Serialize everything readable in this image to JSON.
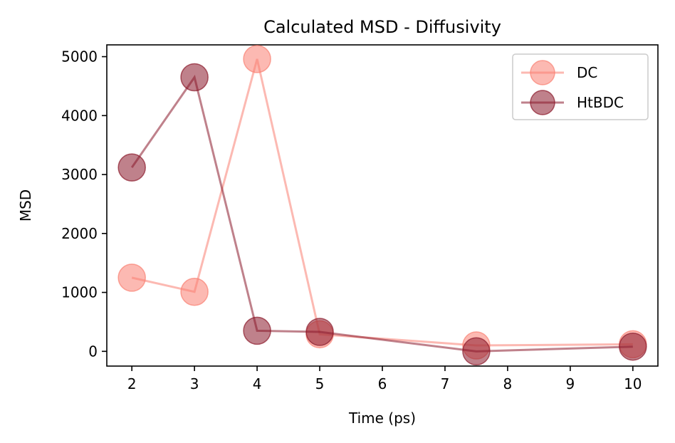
{
  "chart_data": {
    "type": "line",
    "title": "Calculated MSD - Diffusivity",
    "xlabel": "Time (ps)",
    "ylabel": "MSD",
    "xlim": [
      1.6,
      10.4
    ],
    "ylim": [
      -250,
      5200
    ],
    "xticks": [
      2,
      3,
      4,
      5,
      6,
      7,
      8,
      9,
      10
    ],
    "yticks": [
      0,
      1000,
      2000,
      3000,
      4000,
      5000
    ],
    "grid": false,
    "legend_position": "upper right",
    "series": [
      {
        "name": "DC",
        "color": "#fa8072",
        "x": [
          2,
          3,
          4,
          5,
          7.5,
          10
        ],
        "y": [
          1250,
          1010,
          4960,
          290,
          100,
          120
        ]
      },
      {
        "name": "HtBDC",
        "color": "#8b1a2b",
        "x": [
          2,
          3,
          4,
          5,
          7.5,
          10
        ],
        "y": [
          3120,
          4650,
          350,
          330,
          0,
          80
        ]
      }
    ]
  }
}
